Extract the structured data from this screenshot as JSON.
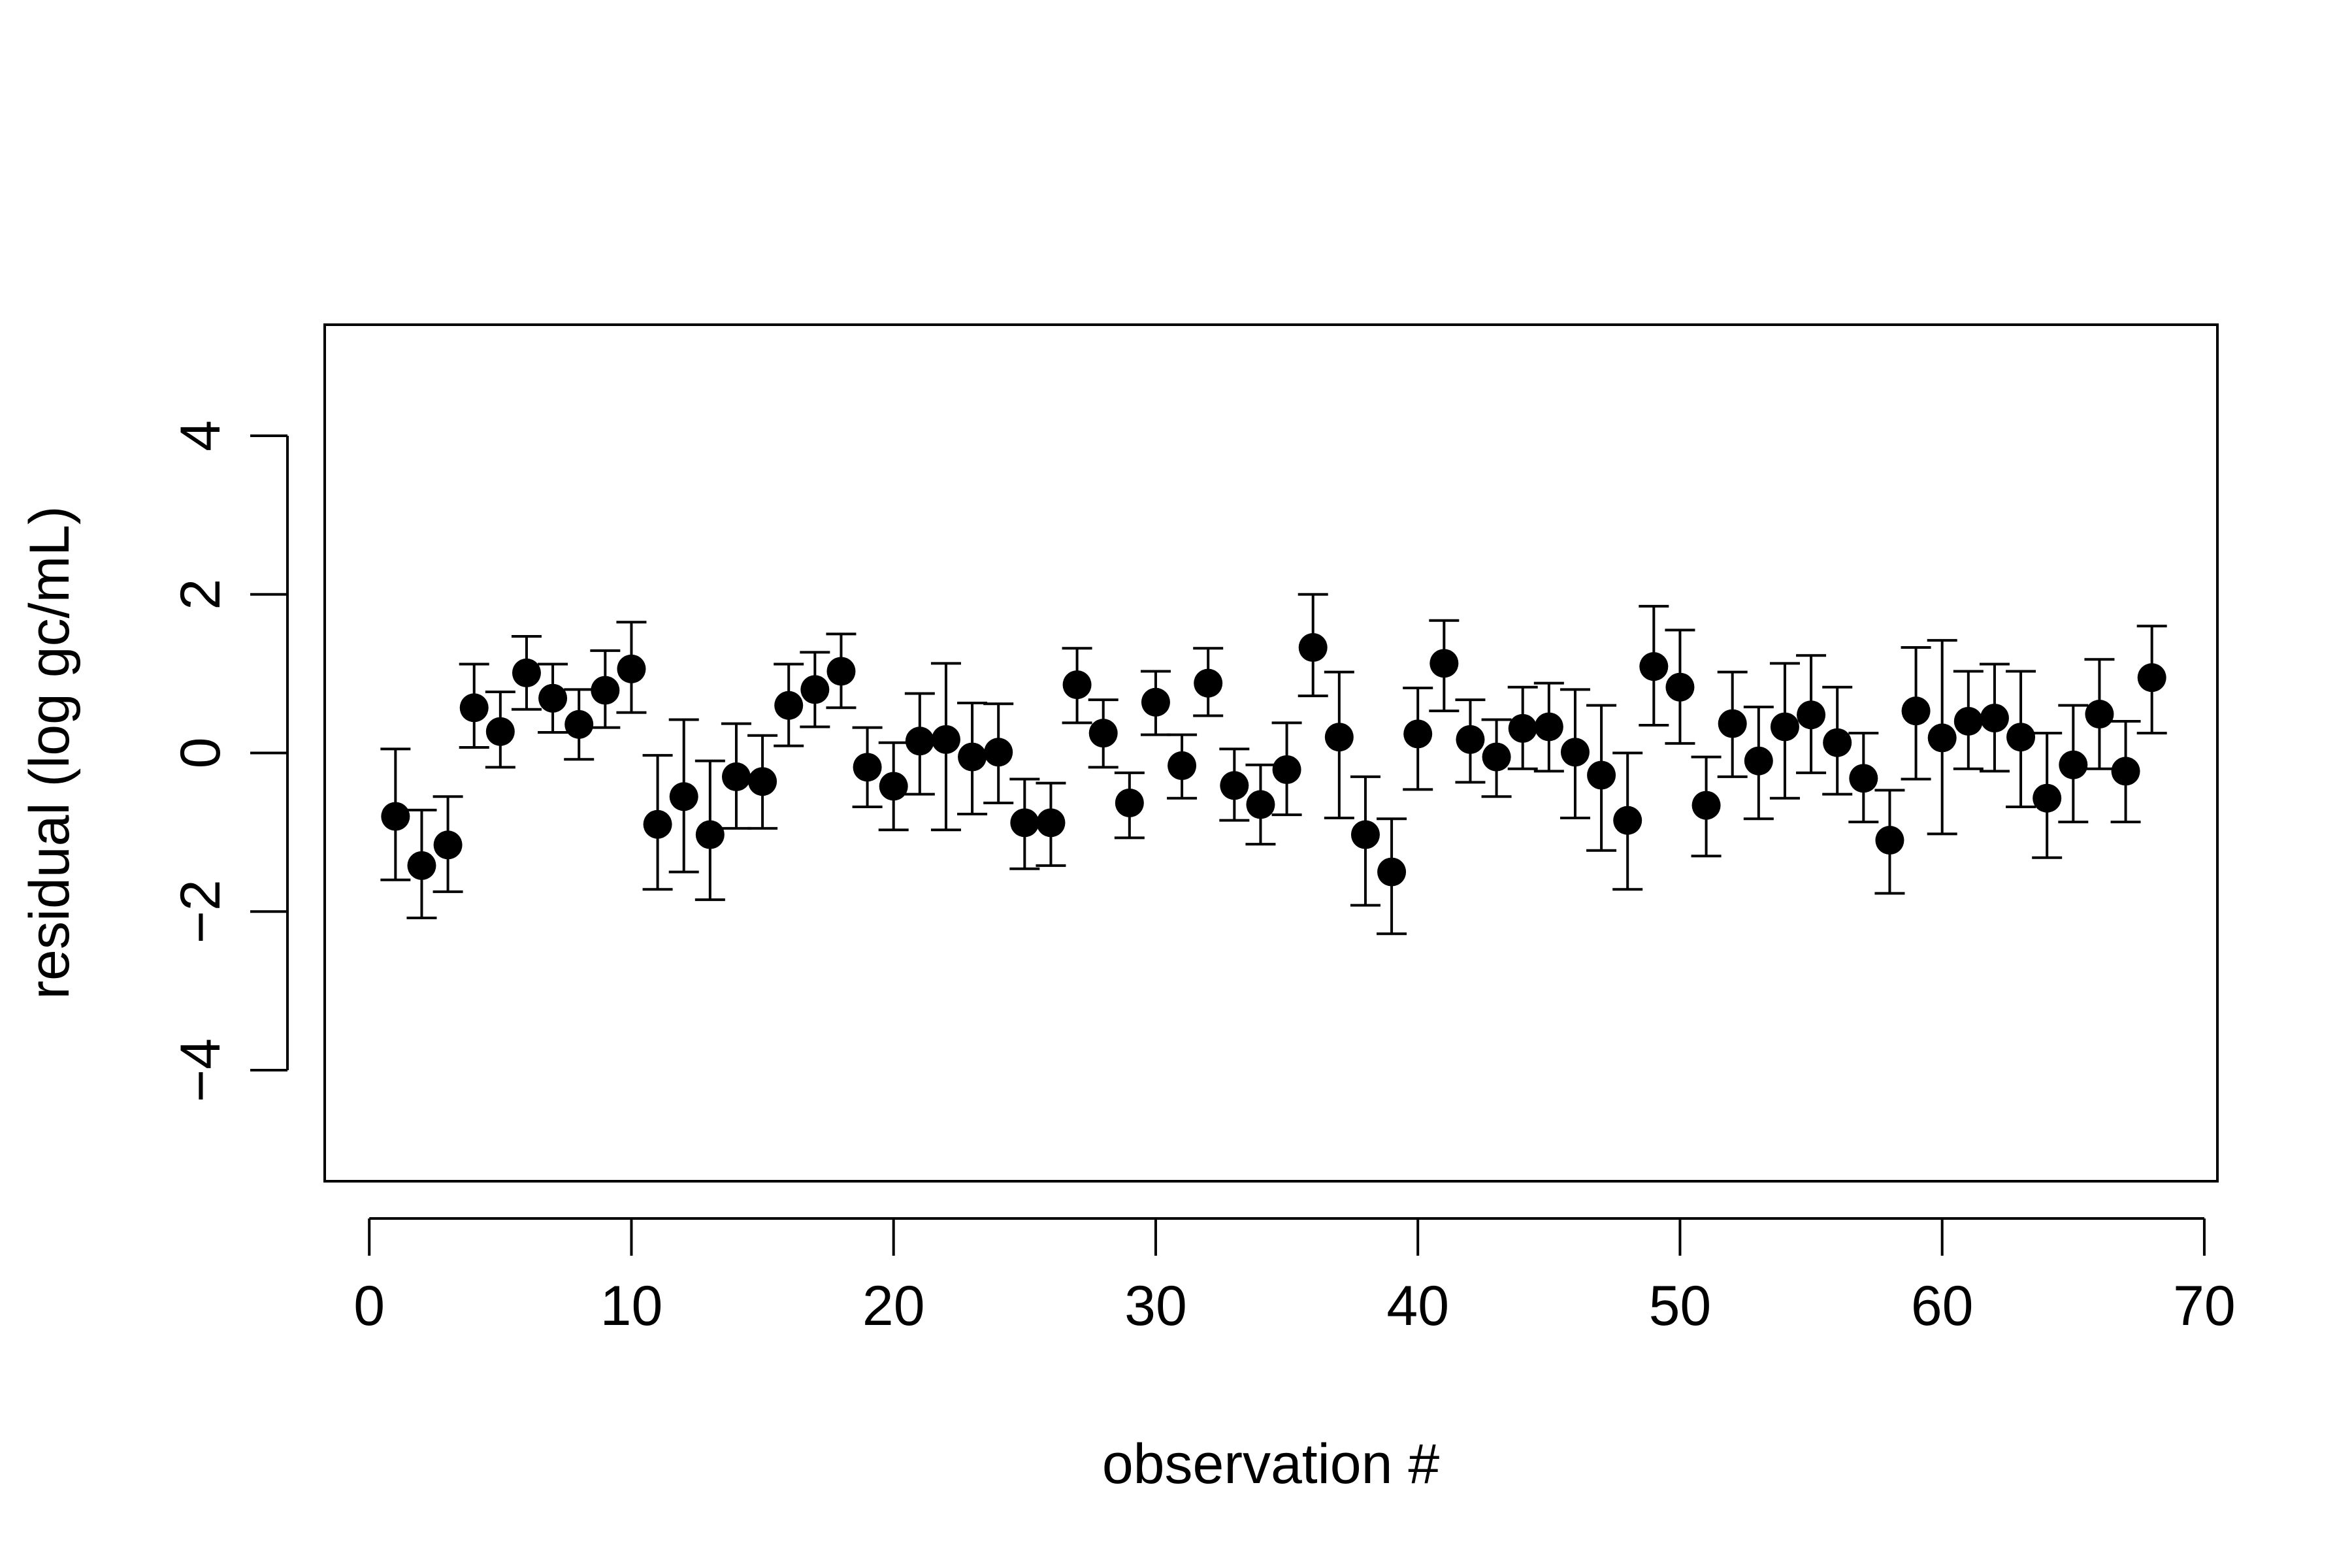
{
  "chart_data": {
    "type": "scatter",
    "xlabel": "observation #",
    "ylabel": "residual (log gc/mL)",
    "xlim": [
      -1.7,
      70.5
    ],
    "ylim": [
      -5.4,
      5.4
    ],
    "xticks": [
      0,
      10,
      20,
      30,
      40,
      50,
      60,
      70
    ],
    "yticks": [
      -4,
      -2,
      0,
      2,
      4
    ],
    "error_bars": true,
    "grid": false,
    "legend": "none",
    "colors": {
      "points": "#000000",
      "axes": "#000000"
    },
    "points": [
      {
        "x": 1,
        "y": -0.8,
        "lo": -1.6,
        "hi": 0.05
      },
      {
        "x": 2,
        "y": -1.42,
        "lo": -2.08,
        "hi": -0.72
      },
      {
        "x": 3,
        "y": -1.16,
        "lo": -1.75,
        "hi": -0.55
      },
      {
        "x": 4,
        "y": 0.57,
        "lo": 0.07,
        "hi": 1.12
      },
      {
        "x": 5,
        "y": 0.27,
        "lo": -0.18,
        "hi": 0.77
      },
      {
        "x": 6,
        "y": 1.01,
        "lo": 0.55,
        "hi": 1.47
      },
      {
        "x": 7,
        "y": 0.69,
        "lo": 0.26,
        "hi": 1.12
      },
      {
        "x": 8,
        "y": 0.36,
        "lo": -0.08,
        "hi": 0.8
      },
      {
        "x": 9,
        "y": 0.79,
        "lo": 0.32,
        "hi": 1.29
      },
      {
        "x": 10,
        "y": 1.06,
        "lo": 0.51,
        "hi": 1.65
      },
      {
        "x": 11,
        "y": -0.9,
        "lo": -1.72,
        "hi": -0.03
      },
      {
        "x": 12,
        "y": -0.55,
        "lo": -1.5,
        "hi": 0.42
      },
      {
        "x": 13,
        "y": -1.03,
        "lo": -1.85,
        "hi": -0.1
      },
      {
        "x": 14,
        "y": -0.3,
        "lo": -0.95,
        "hi": 0.37
      },
      {
        "x": 15,
        "y": -0.36,
        "lo": -0.95,
        "hi": 0.22
      },
      {
        "x": 16,
        "y": 0.6,
        "lo": 0.09,
        "hi": 1.12
      },
      {
        "x": 17,
        "y": 0.8,
        "lo": 0.33,
        "hi": 1.27
      },
      {
        "x": 18,
        "y": 1.03,
        "lo": 0.57,
        "hi": 1.5
      },
      {
        "x": 19,
        "y": -0.18,
        "lo": -0.68,
        "hi": 0.32
      },
      {
        "x": 20,
        "y": -0.42,
        "lo": -0.97,
        "hi": 0.13
      },
      {
        "x": 21,
        "y": 0.15,
        "lo": -0.52,
        "hi": 0.75
      },
      {
        "x": 22,
        "y": 0.17,
        "lo": -0.97,
        "hi": 1.13
      },
      {
        "x": 23,
        "y": -0.05,
        "lo": -0.77,
        "hi": 0.63
      },
      {
        "x": 24,
        "y": 0.01,
        "lo": -0.63,
        "hi": 0.62
      },
      {
        "x": 25,
        "y": -0.88,
        "lo": -1.46,
        "hi": -0.33
      },
      {
        "x": 26,
        "y": -0.88,
        "lo": -1.42,
        "hi": -0.38
      },
      {
        "x": 27,
        "y": 0.86,
        "lo": 0.38,
        "hi": 1.32
      },
      {
        "x": 28,
        "y": 0.25,
        "lo": -0.18,
        "hi": 0.67
      },
      {
        "x": 29,
        "y": -0.63,
        "lo": -1.07,
        "hi": -0.25
      },
      {
        "x": 30,
        "y": 0.64,
        "lo": 0.23,
        "hi": 1.03
      },
      {
        "x": 31,
        "y": -0.16,
        "lo": -0.57,
        "hi": 0.23
      },
      {
        "x": 32,
        "y": 0.88,
        "lo": 0.47,
        "hi": 1.32
      },
      {
        "x": 33,
        "y": -0.41,
        "lo": -0.85,
        "hi": 0.05
      },
      {
        "x": 34,
        "y": -0.65,
        "lo": -1.15,
        "hi": -0.15
      },
      {
        "x": 35,
        "y": -0.21,
        "lo": -0.78,
        "hi": 0.38
      },
      {
        "x": 36,
        "y": 1.33,
        "lo": 0.72,
        "hi": 2.0
      },
      {
        "x": 37,
        "y": 0.2,
        "lo": -0.82,
        "hi": 1.02
      },
      {
        "x": 38,
        "y": -1.03,
        "lo": -1.92,
        "hi": -0.3
      },
      {
        "x": 39,
        "y": -1.5,
        "lo": -2.28,
        "hi": -0.83
      },
      {
        "x": 40,
        "y": 0.24,
        "lo": -0.46,
        "hi": 0.82
      },
      {
        "x": 41,
        "y": 1.13,
        "lo": 0.53,
        "hi": 1.67
      },
      {
        "x": 42,
        "y": 0.17,
        "lo": -0.37,
        "hi": 0.67
      },
      {
        "x": 43,
        "y": -0.05,
        "lo": -0.55,
        "hi": 0.42
      },
      {
        "x": 44,
        "y": 0.31,
        "lo": -0.2,
        "hi": 0.83
      },
      {
        "x": 45,
        "y": 0.33,
        "lo": -0.23,
        "hi": 0.88
      },
      {
        "x": 46,
        "y": 0.01,
        "lo": -0.82,
        "hi": 0.8
      },
      {
        "x": 47,
        "y": -0.28,
        "lo": -1.23,
        "hi": 0.6
      },
      {
        "x": 48,
        "y": -0.85,
        "lo": -1.72,
        "hi": 0.0
      },
      {
        "x": 49,
        "y": 1.09,
        "lo": 0.35,
        "hi": 1.85
      },
      {
        "x": 50,
        "y": 0.83,
        "lo": 0.12,
        "hi": 1.55
      },
      {
        "x": 51,
        "y": -0.66,
        "lo": -1.3,
        "hi": -0.05
      },
      {
        "x": 52,
        "y": 0.37,
        "lo": -0.3,
        "hi": 1.02
      },
      {
        "x": 53,
        "y": -0.1,
        "lo": -0.83,
        "hi": 0.58
      },
      {
        "x": 54,
        "y": 0.33,
        "lo": -0.57,
        "hi": 1.13
      },
      {
        "x": 55,
        "y": 0.48,
        "lo": -0.25,
        "hi": 1.23
      },
      {
        "x": 56,
        "y": 0.13,
        "lo": -0.52,
        "hi": 0.83
      },
      {
        "x": 57,
        "y": -0.32,
        "lo": -0.87,
        "hi": 0.25
      },
      {
        "x": 58,
        "y": -1.1,
        "lo": -1.77,
        "hi": -0.47
      },
      {
        "x": 59,
        "y": 0.53,
        "lo": -0.33,
        "hi": 1.33
      },
      {
        "x": 60,
        "y": 0.19,
        "lo": -1.02,
        "hi": 1.42
      },
      {
        "x": 61,
        "y": 0.4,
        "lo": -0.2,
        "hi": 1.03
      },
      {
        "x": 62,
        "y": 0.44,
        "lo": -0.23,
        "hi": 1.12
      },
      {
        "x": 63,
        "y": 0.2,
        "lo": -0.68,
        "hi": 1.03
      },
      {
        "x": 64,
        "y": -0.57,
        "lo": -1.32,
        "hi": 0.25
      },
      {
        "x": 65,
        "y": -0.15,
        "lo": -0.87,
        "hi": 0.6
      },
      {
        "x": 66,
        "y": 0.49,
        "lo": -0.2,
        "hi": 1.18
      },
      {
        "x": 67,
        "y": -0.23,
        "lo": -0.87,
        "hi": 0.4
      },
      {
        "x": 68,
        "y": 0.95,
        "lo": 0.25,
        "hi": 1.6
      }
    ]
  }
}
